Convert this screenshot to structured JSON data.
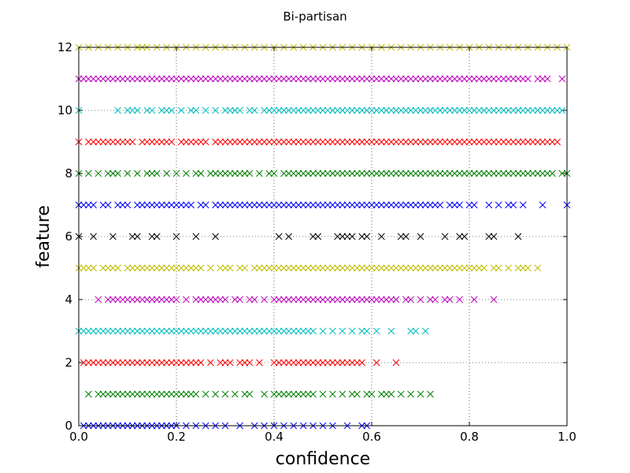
{
  "chart_data": {
    "type": "scatter",
    "title": "Bi-partisan",
    "xlabel": "confidence",
    "ylabel": "feature",
    "xlim": [
      0.0,
      1.0
    ],
    "ylim": [
      0,
      12
    ],
    "xticks": [
      "0.0",
      "0.2",
      "0.4",
      "0.6",
      "0.8",
      "1.0"
    ],
    "yticks": [
      "0",
      "2",
      "4",
      "6",
      "8",
      "10",
      "12"
    ],
    "grid": true,
    "marker": "x",
    "series": [
      {
        "feature": 0,
        "color": "#0000ff",
        "x": [
          0.01,
          0.02,
          0.03,
          0.04,
          0.05,
          0.06,
          0.07,
          0.08,
          0.09,
          0.1,
          0.11,
          0.12,
          0.13,
          0.14,
          0.15,
          0.16,
          0.17,
          0.18,
          0.19,
          0.2,
          0.22,
          0.24,
          0.26,
          0.28,
          0.3,
          0.33,
          0.36,
          0.38,
          0.4,
          0.42,
          0.44,
          0.46,
          0.48,
          0.5,
          0.52,
          0.55,
          0.58,
          0.59
        ]
      },
      {
        "feature": 1,
        "color": "#008000",
        "x": [
          0.02,
          0.04,
          0.05,
          0.06,
          0.07,
          0.08,
          0.09,
          0.1,
          0.11,
          0.12,
          0.13,
          0.14,
          0.15,
          0.16,
          0.17,
          0.18,
          0.19,
          0.2,
          0.21,
          0.22,
          0.23,
          0.24,
          0.26,
          0.28,
          0.3,
          0.32,
          0.34,
          0.35,
          0.38,
          0.4,
          0.41,
          0.42,
          0.43,
          0.44,
          0.45,
          0.46,
          0.47,
          0.48,
          0.5,
          0.52,
          0.54,
          0.56,
          0.57,
          0.59,
          0.6,
          0.62,
          0.63,
          0.64,
          0.66,
          0.68,
          0.7,
          0.72
        ]
      },
      {
        "feature": 2,
        "color": "#ff0000",
        "x": [
          0.01,
          0.02,
          0.03,
          0.04,
          0.05,
          0.06,
          0.07,
          0.08,
          0.09,
          0.1,
          0.11,
          0.12,
          0.13,
          0.14,
          0.15,
          0.16,
          0.17,
          0.18,
          0.19,
          0.2,
          0.21,
          0.22,
          0.23,
          0.24,
          0.25,
          0.27,
          0.29,
          0.3,
          0.31,
          0.33,
          0.34,
          0.35,
          0.37,
          0.4,
          0.41,
          0.42,
          0.43,
          0.44,
          0.45,
          0.46,
          0.47,
          0.48,
          0.49,
          0.5,
          0.51,
          0.52,
          0.53,
          0.54,
          0.55,
          0.56,
          0.57,
          0.58,
          0.61,
          0.65
        ]
      },
      {
        "feature": 3,
        "color": "#00bfbf",
        "x": [
          0.0,
          0.01,
          0.02,
          0.03,
          0.04,
          0.05,
          0.06,
          0.07,
          0.08,
          0.09,
          0.1,
          0.11,
          0.12,
          0.13,
          0.14,
          0.15,
          0.16,
          0.17,
          0.18,
          0.19,
          0.2,
          0.21,
          0.22,
          0.23,
          0.24,
          0.25,
          0.26,
          0.27,
          0.28,
          0.29,
          0.3,
          0.31,
          0.32,
          0.33,
          0.34,
          0.35,
          0.36,
          0.37,
          0.38,
          0.39,
          0.4,
          0.41,
          0.42,
          0.43,
          0.44,
          0.45,
          0.46,
          0.47,
          0.48,
          0.5,
          0.52,
          0.54,
          0.56,
          0.58,
          0.59,
          0.61,
          0.64,
          0.68,
          0.69,
          0.71
        ]
      },
      {
        "feature": 4,
        "color": "#bf00bf",
        "x": [
          0.04,
          0.06,
          0.07,
          0.08,
          0.09,
          0.1,
          0.11,
          0.12,
          0.13,
          0.14,
          0.15,
          0.16,
          0.17,
          0.18,
          0.19,
          0.2,
          0.22,
          0.24,
          0.25,
          0.26,
          0.27,
          0.28,
          0.29,
          0.3,
          0.32,
          0.33,
          0.35,
          0.36,
          0.38,
          0.4,
          0.41,
          0.42,
          0.43,
          0.44,
          0.45,
          0.46,
          0.47,
          0.48,
          0.49,
          0.5,
          0.51,
          0.52,
          0.53,
          0.54,
          0.55,
          0.56,
          0.57,
          0.58,
          0.59,
          0.6,
          0.61,
          0.62,
          0.63,
          0.64,
          0.65,
          0.67,
          0.68,
          0.7,
          0.72,
          0.73,
          0.75,
          0.76,
          0.78,
          0.81,
          0.85
        ]
      },
      {
        "feature": 5,
        "color": "#bfbf00",
        "x": [
          0.0,
          0.01,
          0.02,
          0.03,
          0.05,
          0.06,
          0.07,
          0.08,
          0.1,
          0.11,
          0.12,
          0.13,
          0.14,
          0.15,
          0.16,
          0.17,
          0.18,
          0.19,
          0.2,
          0.21,
          0.22,
          0.23,
          0.24,
          0.25,
          0.27,
          0.29,
          0.3,
          0.31,
          0.33,
          0.34,
          0.36,
          0.37,
          0.38,
          0.39,
          0.4,
          0.41,
          0.42,
          0.43,
          0.44,
          0.45,
          0.46,
          0.47,
          0.48,
          0.49,
          0.5,
          0.51,
          0.52,
          0.53,
          0.54,
          0.55,
          0.56,
          0.57,
          0.58,
          0.59,
          0.6,
          0.61,
          0.62,
          0.63,
          0.64,
          0.65,
          0.66,
          0.67,
          0.68,
          0.69,
          0.7,
          0.71,
          0.72,
          0.73,
          0.74,
          0.75,
          0.76,
          0.77,
          0.78,
          0.79,
          0.8,
          0.81,
          0.82,
          0.83,
          0.85,
          0.86,
          0.88,
          0.9,
          0.91,
          0.92,
          0.94
        ]
      },
      {
        "feature": 6,
        "color": "#000000",
        "x": [
          0.0,
          0.03,
          0.07,
          0.11,
          0.12,
          0.15,
          0.16,
          0.2,
          0.24,
          0.28,
          0.41,
          0.43,
          0.48,
          0.49,
          0.53,
          0.54,
          0.55,
          0.56,
          0.58,
          0.59,
          0.62,
          0.66,
          0.67,
          0.7,
          0.75,
          0.78,
          0.79,
          0.84,
          0.85,
          0.9
        ]
      },
      {
        "feature": 7,
        "color": "#0000ff",
        "x": [
          0.0,
          0.01,
          0.02,
          0.03,
          0.05,
          0.06,
          0.08,
          0.09,
          0.1,
          0.12,
          0.13,
          0.14,
          0.15,
          0.16,
          0.17,
          0.18,
          0.19,
          0.2,
          0.21,
          0.22,
          0.23,
          0.25,
          0.26,
          0.28,
          0.29,
          0.3,
          0.31,
          0.32,
          0.33,
          0.34,
          0.35,
          0.36,
          0.37,
          0.38,
          0.39,
          0.4,
          0.41,
          0.42,
          0.43,
          0.44,
          0.45,
          0.46,
          0.47,
          0.48,
          0.49,
          0.5,
          0.51,
          0.52,
          0.53,
          0.54,
          0.55,
          0.56,
          0.57,
          0.58,
          0.59,
          0.6,
          0.61,
          0.62,
          0.63,
          0.64,
          0.65,
          0.66,
          0.67,
          0.68,
          0.69,
          0.7,
          0.71,
          0.72,
          0.73,
          0.74,
          0.76,
          0.77,
          0.78,
          0.8,
          0.81,
          0.84,
          0.86,
          0.88,
          0.89,
          0.91,
          0.95,
          1.0
        ]
      },
      {
        "feature": 8,
        "color": "#008000",
        "x": [
          0.0,
          0.02,
          0.04,
          0.06,
          0.07,
          0.08,
          0.1,
          0.12,
          0.14,
          0.15,
          0.16,
          0.18,
          0.2,
          0.22,
          0.24,
          0.25,
          0.27,
          0.28,
          0.29,
          0.3,
          0.31,
          0.32,
          0.33,
          0.34,
          0.35,
          0.37,
          0.39,
          0.4,
          0.42,
          0.43,
          0.44,
          0.45,
          0.46,
          0.47,
          0.48,
          0.49,
          0.5,
          0.51,
          0.52,
          0.53,
          0.54,
          0.55,
          0.56,
          0.57,
          0.58,
          0.59,
          0.6,
          0.61,
          0.62,
          0.63,
          0.64,
          0.65,
          0.66,
          0.67,
          0.68,
          0.69,
          0.7,
          0.71,
          0.72,
          0.73,
          0.74,
          0.75,
          0.76,
          0.77,
          0.78,
          0.79,
          0.8,
          0.81,
          0.82,
          0.83,
          0.84,
          0.85,
          0.86,
          0.87,
          0.88,
          0.89,
          0.9,
          0.91,
          0.92,
          0.93,
          0.94,
          0.95,
          0.96,
          0.97,
          0.99,
          1.0
        ]
      },
      {
        "feature": 9,
        "color": "#ff0000",
        "x": [
          0.0,
          0.02,
          0.03,
          0.04,
          0.05,
          0.06,
          0.07,
          0.08,
          0.09,
          0.1,
          0.11,
          0.13,
          0.14,
          0.15,
          0.16,
          0.17,
          0.18,
          0.19,
          0.21,
          0.22,
          0.23,
          0.24,
          0.25,
          0.26,
          0.28,
          0.29,
          0.3,
          0.31,
          0.32,
          0.33,
          0.34,
          0.35,
          0.36,
          0.37,
          0.38,
          0.39,
          0.4,
          0.41,
          0.42,
          0.43,
          0.44,
          0.45,
          0.46,
          0.47,
          0.48,
          0.49,
          0.5,
          0.51,
          0.52,
          0.53,
          0.54,
          0.55,
          0.56,
          0.57,
          0.58,
          0.59,
          0.6,
          0.61,
          0.62,
          0.63,
          0.64,
          0.65,
          0.66,
          0.67,
          0.68,
          0.69,
          0.7,
          0.71,
          0.72,
          0.73,
          0.74,
          0.75,
          0.76,
          0.77,
          0.78,
          0.79,
          0.8,
          0.81,
          0.82,
          0.83,
          0.84,
          0.85,
          0.86,
          0.87,
          0.88,
          0.89,
          0.9,
          0.91,
          0.92,
          0.93,
          0.94,
          0.95,
          0.96,
          0.97,
          0.98
        ]
      },
      {
        "feature": 10,
        "color": "#00bfbf",
        "x": [
          0.0,
          0.08,
          0.1,
          0.11,
          0.12,
          0.14,
          0.15,
          0.17,
          0.18,
          0.19,
          0.21,
          0.23,
          0.24,
          0.26,
          0.28,
          0.3,
          0.31,
          0.32,
          0.33,
          0.35,
          0.36,
          0.38,
          0.39,
          0.4,
          0.41,
          0.42,
          0.43,
          0.44,
          0.45,
          0.46,
          0.47,
          0.48,
          0.49,
          0.5,
          0.51,
          0.52,
          0.53,
          0.54,
          0.55,
          0.56,
          0.57,
          0.58,
          0.59,
          0.6,
          0.61,
          0.62,
          0.63,
          0.64,
          0.65,
          0.66,
          0.67,
          0.68,
          0.69,
          0.7,
          0.71,
          0.72,
          0.73,
          0.74,
          0.75,
          0.76,
          0.77,
          0.78,
          0.79,
          0.8,
          0.81,
          0.82,
          0.83,
          0.84,
          0.85,
          0.86,
          0.87,
          0.88,
          0.89,
          0.9,
          0.91,
          0.92,
          0.93,
          0.94,
          0.95,
          0.96,
          0.97,
          0.98,
          0.99
        ]
      },
      {
        "feature": 11,
        "color": "#bf00bf",
        "x": [
          0.0,
          0.01,
          0.02,
          0.03,
          0.04,
          0.05,
          0.06,
          0.07,
          0.08,
          0.09,
          0.1,
          0.11,
          0.12,
          0.13,
          0.14,
          0.15,
          0.16,
          0.17,
          0.18,
          0.19,
          0.2,
          0.21,
          0.22,
          0.23,
          0.24,
          0.25,
          0.26,
          0.27,
          0.28,
          0.29,
          0.3,
          0.31,
          0.32,
          0.33,
          0.34,
          0.35,
          0.36,
          0.37,
          0.38,
          0.39,
          0.4,
          0.41,
          0.42,
          0.43,
          0.44,
          0.45,
          0.46,
          0.47,
          0.48,
          0.49,
          0.5,
          0.51,
          0.52,
          0.53,
          0.54,
          0.55,
          0.56,
          0.57,
          0.58,
          0.59,
          0.6,
          0.61,
          0.62,
          0.63,
          0.64,
          0.65,
          0.66,
          0.67,
          0.68,
          0.69,
          0.7,
          0.71,
          0.72,
          0.73,
          0.74,
          0.75,
          0.76,
          0.77,
          0.78,
          0.79,
          0.8,
          0.81,
          0.82,
          0.83,
          0.84,
          0.85,
          0.86,
          0.87,
          0.88,
          0.89,
          0.9,
          0.91,
          0.92,
          0.94,
          0.95,
          0.96,
          0.99
        ]
      },
      {
        "feature": 12,
        "color": "#bfbf00",
        "x": [
          0.0,
          0.02,
          0.04,
          0.06,
          0.08,
          0.1,
          0.12,
          0.13,
          0.14,
          0.16,
          0.18,
          0.2,
          0.22,
          0.24,
          0.26,
          0.28,
          0.3,
          0.32,
          0.34,
          0.36,
          0.38,
          0.4,
          0.42,
          0.44,
          0.46,
          0.48,
          0.5,
          0.52,
          0.54,
          0.56,
          0.58,
          0.6,
          0.62,
          0.64,
          0.66,
          0.68,
          0.7,
          0.72,
          0.74,
          0.76,
          0.78,
          0.8,
          0.82,
          0.84,
          0.86,
          0.88,
          0.9,
          0.92,
          0.94,
          0.96,
          0.98,
          1.0
        ]
      }
    ]
  }
}
